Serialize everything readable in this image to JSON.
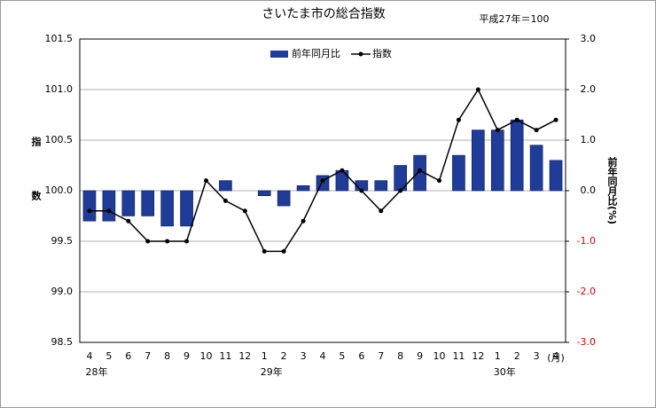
{
  "chart_data": {
    "type": "bar-line",
    "title": "さいたま市の総合指数",
    "subtitle": "平成27年＝100",
    "ylabel": "指数",
    "y2label": "前年同月比(%)",
    "xunit": "(月)",
    "categories": [
      "4",
      "5",
      "6",
      "7",
      "8",
      "9",
      "10",
      "11",
      "12",
      "1",
      "2",
      "3",
      "4",
      "5",
      "6",
      "7",
      "8",
      "9",
      "10",
      "11",
      "12",
      "1",
      "2",
      "3",
      "4"
    ],
    "category_groups": [
      "28年",
      null,
      null,
      null,
      null,
      null,
      null,
      null,
      null,
      "29年",
      null,
      null,
      null,
      null,
      null,
      null,
      null,
      null,
      null,
      null,
      null,
      "30年",
      null,
      null,
      null
    ],
    "series": [
      {
        "name": "前年同月比",
        "type": "bar",
        "axis": "y2",
        "color": "#1f3c99",
        "values": [
          -0.6,
          -0.6,
          -0.5,
          -0.5,
          -0.7,
          -0.7,
          0,
          0.2,
          0,
          -0.1,
          -0.3,
          0.1,
          0.3,
          0.4,
          0.2,
          0.2,
          0.5,
          0.7,
          0,
          0.7,
          1.2,
          1.2,
          1.4,
          0.9,
          0.6
        ]
      },
      {
        "name": "指数",
        "type": "line",
        "color": "#000000",
        "values": [
          99.8,
          99.8,
          99.7,
          99.5,
          99.5,
          99.5,
          100.1,
          99.9,
          99.8,
          99.4,
          99.4,
          99.7,
          100.1,
          100.2,
          100.0,
          99.8,
          100.0,
          100.2,
          100.1,
          100.7,
          101.0,
          100.6,
          100.7,
          100.6,
          100.7
        ]
      }
    ],
    "ylim": [
      98.5,
      101.5
    ],
    "yticks": [
      101.5,
      {
        "value": 101,
        "label": "101.0"
      },
      100.5,
      {
        "value": 100,
        "label": "100.0"
      },
      99.5,
      {
        "value": 99,
        "label": "99.0"
      },
      98.5
    ],
    "y2lim": [
      -3,
      3
    ],
    "y2ticks": [
      {
        "value": 3,
        "label": "3.0"
      },
      {
        "value": 2,
        "label": "2.0"
      },
      {
        "value": 1,
        "label": "1.0"
      },
      {
        "value": 0,
        "label": "0.0"
      },
      {
        "value": -1,
        "label": "-1.0"
      },
      {
        "value": -2,
        "label": "-2.0"
      },
      {
        "value": -3,
        "label": "-3.0"
      }
    ],
    "grid": true,
    "legend": "top"
  }
}
